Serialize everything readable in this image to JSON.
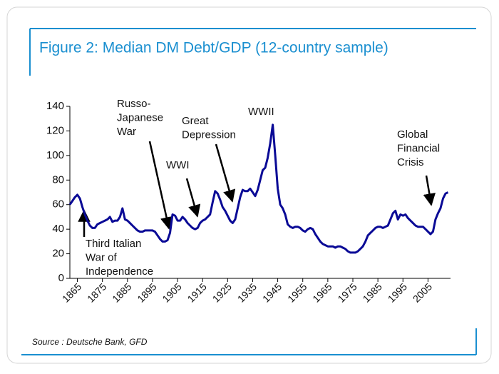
{
  "chart_data": {
    "type": "line",
    "title": "Figure 2: Median DM Debt/GDP (12-country sample)",
    "source": "Source : Deutsche Bank, GFD",
    "x": [
      1862,
      1863,
      1864,
      1865,
      1866,
      1867,
      1868,
      1869,
      1870,
      1871,
      1872,
      1873,
      1874,
      1875,
      1876,
      1877,
      1878,
      1879,
      1880,
      1881,
      1882,
      1883,
      1884,
      1885,
      1886,
      1887,
      1888,
      1889,
      1890,
      1891,
      1892,
      1893,
      1894,
      1895,
      1896,
      1897,
      1898,
      1899,
      1900,
      1901,
      1902,
      1903,
      1904,
      1905,
      1906,
      1907,
      1908,
      1909,
      1910,
      1911,
      1912,
      1913,
      1914,
      1915,
      1916,
      1917,
      1918,
      1919,
      1920,
      1921,
      1922,
      1923,
      1924,
      1925,
      1926,
      1927,
      1928,
      1929,
      1930,
      1931,
      1932,
      1933,
      1934,
      1935,
      1936,
      1937,
      1938,
      1939,
      1940,
      1941,
      1942,
      1943,
      1944,
      1945,
      1946,
      1947,
      1948,
      1949,
      1950,
      1951,
      1952,
      1953,
      1954,
      1955,
      1956,
      1957,
      1958,
      1959,
      1960,
      1961,
      1962,
      1963,
      1964,
      1965,
      1966,
      1967,
      1968,
      1969,
      1970,
      1971,
      1972,
      1973,
      1974,
      1975,
      1976,
      1977,
      1978,
      1979,
      1980,
      1981,
      1982,
      1983,
      1984,
      1985,
      1986,
      1987,
      1988,
      1989,
      1990,
      1991,
      1992,
      1993,
      1994,
      1995,
      1996,
      1997,
      1998,
      1999,
      2000,
      2001,
      2002,
      2003,
      2004,
      2005,
      2006,
      2007,
      2008,
      2009,
      2010,
      2011,
      2012,
      2013
    ],
    "series": [
      {
        "color": "#0a0a96",
        "values": [
          60,
          63,
          66,
          68,
          65,
          58,
          52,
          47,
          43,
          41,
          41,
          44,
          45,
          46,
          47,
          48,
          50,
          46,
          47,
          47,
          50,
          57,
          48,
          47,
          45,
          43,
          41,
          39,
          38,
          38,
          39,
          39,
          39,
          39,
          38,
          35,
          32,
          30,
          30,
          31,
          37,
          52,
          51,
          47,
          47,
          50,
          48,
          45,
          43,
          41,
          40,
          41,
          45,
          47,
          48,
          50,
          52,
          62,
          71,
          69,
          64,
          58,
          55,
          51,
          47,
          45,
          48,
          57,
          66,
          72,
          71,
          71,
          73,
          70,
          67,
          72,
          80,
          88,
          90,
          98,
          110,
          125,
          100,
          73,
          60,
          57,
          52,
          44,
          42,
          41,
          42,
          42,
          41,
          39,
          38,
          40,
          41,
          40,
          36,
          33,
          30,
          28,
          27,
          26,
          26,
          26,
          25,
          26,
          26,
          25,
          24,
          22,
          21,
          21,
          21,
          22,
          24,
          26,
          30,
          35,
          37,
          39,
          41,
          42,
          42,
          41,
          42,
          43,
          48,
          53,
          55,
          48,
          52,
          51,
          52,
          49,
          47,
          45,
          43,
          42,
          42,
          42,
          40,
          38,
          36,
          38,
          48,
          53,
          57,
          65,
          69,
          70
        ]
      }
    ],
    "xlim": [
      1862,
      2014
    ],
    "xticks": [
      1865,
      1875,
      1885,
      1895,
      1905,
      1915,
      1925,
      1935,
      1945,
      1955,
      1965,
      1975,
      1985,
      1995,
      2005
    ],
    "ylim": [
      0,
      140
    ],
    "yticks": [
      0,
      20,
      40,
      60,
      80,
      100,
      120,
      140
    ],
    "annotations": [
      {
        "text": [
          "Third Italian",
          "War of",
          "Independence"
        ]
      },
      {
        "text": [
          "Russo-",
          "Japanese",
          "War"
        ]
      },
      {
        "text": [
          "WWI"
        ]
      },
      {
        "text": [
          "Great",
          "Depression"
        ]
      },
      {
        "text": [
          "WWII"
        ]
      },
      {
        "text": [
          "Global",
          "Financial",
          "Crisis"
        ]
      }
    ]
  }
}
